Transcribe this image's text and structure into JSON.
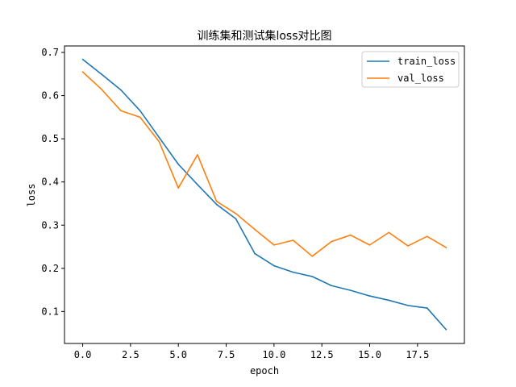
{
  "chart_data": {
    "type": "line",
    "title": "训练集和测试集loss对比图",
    "xlabel": "epoch",
    "ylabel": "loss",
    "xlim": [
      -0.95,
      19.95
    ],
    "ylim": [
      0.026,
      0.715
    ],
    "xticks": [
      0,
      2.5,
      5,
      7.5,
      10,
      12.5,
      15,
      17.5
    ],
    "xtick_labels": [
      "0.0",
      "2.5",
      "5.0",
      "7.5",
      "10.0",
      "12.5",
      "15.0",
      "17.5"
    ],
    "yticks": [
      0.1,
      0.2,
      0.3,
      0.4,
      0.5,
      0.6,
      0.7
    ],
    "ytick_labels": [
      "0.1",
      "0.2",
      "0.3",
      "0.4",
      "0.5",
      "0.6",
      "0.7"
    ],
    "grid": false,
    "legend": "top-right",
    "x": [
      0,
      1,
      2,
      3,
      4,
      5,
      6,
      7,
      8,
      9,
      10,
      11,
      12,
      13,
      14,
      15,
      16,
      17,
      18,
      19
    ],
    "series": [
      {
        "name": "train_loss",
        "color": "#1f77b4",
        "values": [
          0.684,
          0.649,
          0.613,
          0.565,
          0.503,
          0.441,
          0.394,
          0.348,
          0.315,
          0.234,
          0.206,
          0.191,
          0.181,
          0.16,
          0.149,
          0.136,
          0.126,
          0.114,
          0.108,
          0.058
        ]
      },
      {
        "name": "val_loss",
        "color": "#ff7f0e",
        "values": [
          0.655,
          0.614,
          0.565,
          0.55,
          0.493,
          0.386,
          0.463,
          0.355,
          0.327,
          0.29,
          0.254,
          0.265,
          0.228,
          0.262,
          0.277,
          0.254,
          0.283,
          0.252,
          0.274,
          0.248
        ]
      }
    ]
  }
}
